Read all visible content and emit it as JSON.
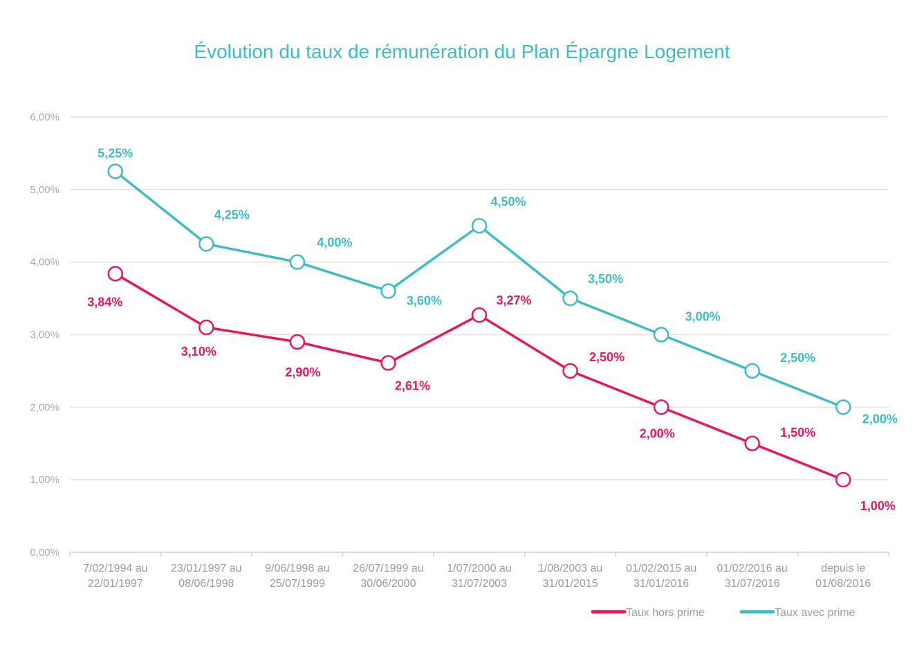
{
  "chart_data": {
    "type": "line",
    "title": "Évolution du taux de rémunération du Plan Épargne Logement",
    "xlabel": "",
    "ylabel": "",
    "ylim": [
      0,
      6
    ],
    "yticks": [
      "0,00%",
      "1,00%",
      "2,00%",
      "3,00%",
      "4,00%",
      "5,00%",
      "6,00%"
    ],
    "grid": true,
    "legend_position": "bottom-right",
    "categories": [
      [
        "7/02/1994 au",
        "22/01/1997"
      ],
      [
        "23/01/1997 au",
        "08/06/1998"
      ],
      [
        "9/06/1998 au",
        "25/07/1999"
      ],
      [
        "26/07/1999 au",
        "30/06/2000"
      ],
      [
        "1/07/2000 au",
        "31/07/2003"
      ],
      [
        "1/08/2003 au",
        "31/01/2015"
      ],
      [
        "01/02/2015 au",
        "31/01/2016"
      ],
      [
        "01/02/2016 au",
        "31/07/2016"
      ],
      [
        "depuis le",
        "01/08/2016"
      ]
    ],
    "series": [
      {
        "name": "Taux hors prime",
        "color": "#e5185d",
        "values": [
          3.84,
          3.1,
          2.9,
          2.61,
          3.27,
          2.5,
          2.0,
          1.5,
          1.0
        ],
        "labels": [
          "3,84%",
          "3,10%",
          "2,90%",
          "2,61%",
          "3,27%",
          "2,50%",
          "2,00%",
          "1,50%",
          "1,00%"
        ]
      },
      {
        "name": "Taux avec prime",
        "color": "#3dbcc4",
        "values": [
          5.25,
          4.25,
          4.0,
          3.6,
          4.5,
          3.5,
          3.0,
          2.5,
          2.0
        ],
        "labels": [
          "5,25%",
          "4,25%",
          "4,00%",
          "3,60%",
          "4,50%",
          "3,50%",
          "3,00%",
          "2,50%",
          "2,00%"
        ]
      }
    ]
  }
}
